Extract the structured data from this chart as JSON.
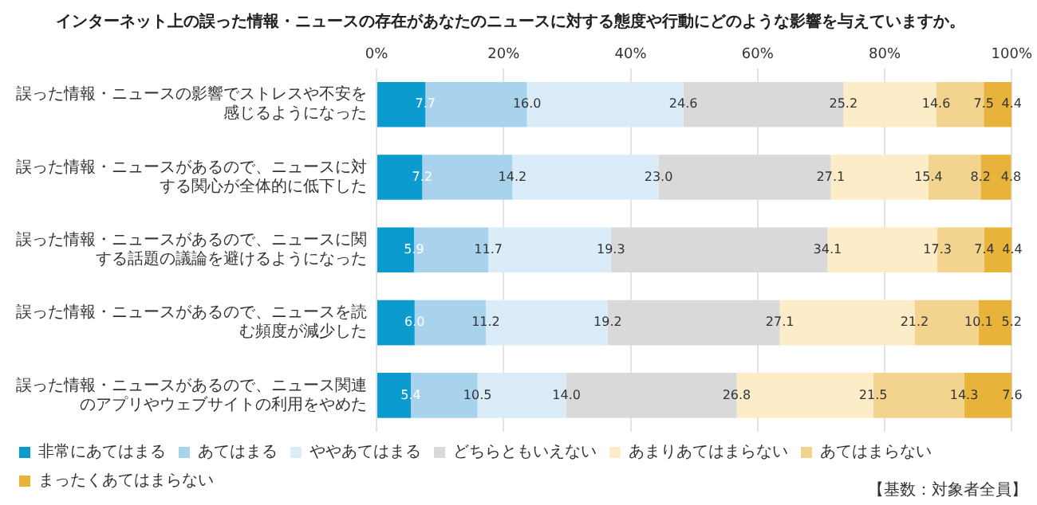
{
  "chart_data": {
    "type": "bar",
    "orientation": "horizontal",
    "stacked": true,
    "grid": "x",
    "legend": "bottom",
    "title": "インターネット上の誤った情報・ニュースの存在があなたのニュースに対する態度や行動にどのような影響を与えていますか。",
    "categories": [
      "誤った情報・ニュースの影響でストレスや不安を感じるようになった",
      "誤った情報・ニュースがあるので、ニュースに対する関心が全体的に低下した",
      "誤った情報・ニュースがあるので、ニュースに関する話題の議論を避けるようになった",
      "誤った情報・ニュースがあるので、ニュースを読む頻度が減少した",
      "誤った情報・ニュースがあるので、ニュース関連のアプリやウェブサイトの利用をやめた"
    ],
    "series": [
      {
        "name": "非常にあてはまる",
        "color": "#0c9bcf",
        "values": [
          7.7,
          7.2,
          5.9,
          6.0,
          5.4
        ],
        "value_labels": [
          "7.7",
          "7.2",
          "5.9",
          "6.0",
          "5.4"
        ]
      },
      {
        "name": "あてはまる",
        "color": "#a9d3ec",
        "values": [
          16.0,
          14.2,
          11.7,
          11.2,
          10.5
        ],
        "value_labels": [
          "16.0",
          "14.2",
          "11.7",
          "11.2",
          "10.5"
        ]
      },
      {
        "name": "ややあてはまる",
        "color": "#d9ecf8",
        "values": [
          24.6,
          23.0,
          19.3,
          19.2,
          14.0
        ],
        "value_labels": [
          "24.6",
          "23.0",
          "19.3",
          "19.2",
          "14.0"
        ]
      },
      {
        "name": "どちらともいえない",
        "color": "#d9d9d9",
        "values": [
          25.2,
          27.1,
          34.1,
          27.1,
          26.8
        ],
        "value_labels": [
          "25.2",
          "27.1",
          "34.1",
          "27.1",
          "26.8"
        ]
      },
      {
        "name": "あまりあてはまらない",
        "color": "#fcecc8",
        "values": [
          14.6,
          15.4,
          17.3,
          21.2,
          21.5
        ],
        "value_labels": [
          "14.6",
          "15.4",
          "17.3",
          "21.2",
          "21.5"
        ]
      },
      {
        "name": "あてはまらない",
        "color": "#f3d48e",
        "values": [
          7.5,
          8.2,
          7.4,
          10.1,
          14.3
        ],
        "value_labels": [
          "7.5",
          "8.2",
          "7.4",
          "10.1",
          "14.3"
        ]
      },
      {
        "name": "まったくあてはまらない",
        "color": "#e8b33a",
        "values": [
          4.4,
          4.8,
          4.4,
          5.2,
          7.6
        ],
        "value_labels": [
          "4.4",
          "4.8",
          "4.4",
          "5.2",
          "7.6"
        ]
      }
    ],
    "xlim": [
      0,
      100
    ],
    "xticks": [
      {
        "value": 0,
        "label": "0%"
      },
      {
        "value": 20,
        "label": "20%"
      },
      {
        "value": 40,
        "label": "40%"
      },
      {
        "value": 60,
        "label": "60%"
      },
      {
        "value": 80,
        "label": "80%"
      },
      {
        "value": 100,
        "label": "100%"
      }
    ],
    "annotations": [
      "【基数：対象者全員】"
    ]
  }
}
